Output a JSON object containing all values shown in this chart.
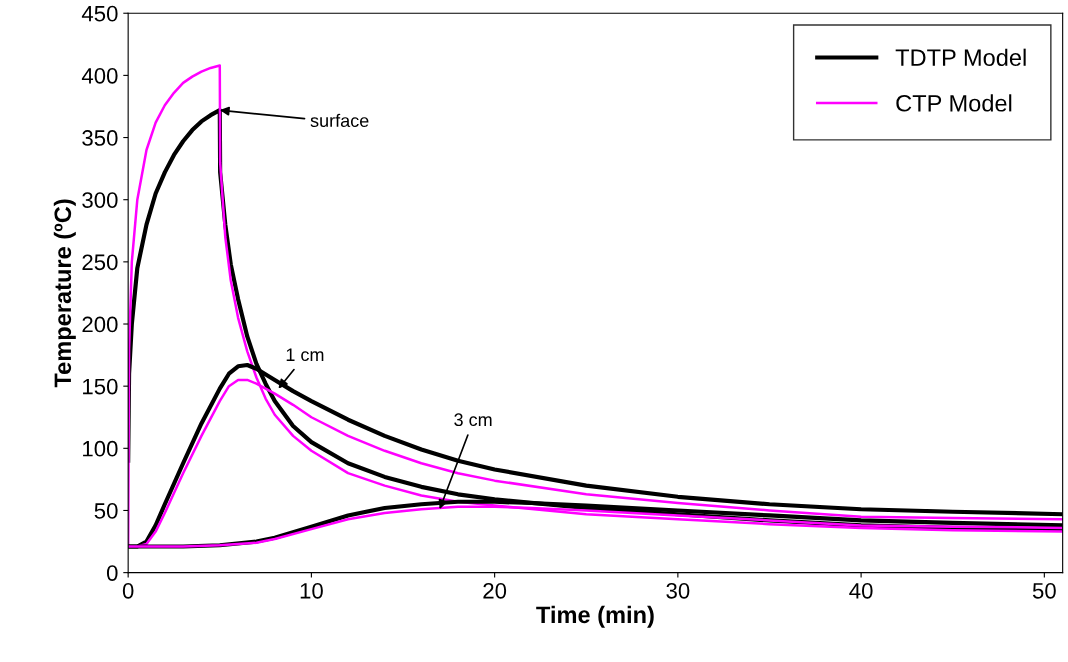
{
  "chart_data": {
    "type": "line",
    "xlabel": "Time (min)",
    "ylabel": "Temperature (ºC)",
    "xlim": [
      0,
      51
    ],
    "xticks": [
      0,
      10,
      20,
      30,
      40,
      50
    ],
    "ylim": [
      0,
      450
    ],
    "yticks": [
      0,
      50,
      100,
      150,
      200,
      250,
      300,
      350,
      400,
      450
    ],
    "grid": false,
    "legend": "top right",
    "marker": "none",
    "line_style": "solid",
    "series": [
      {
        "name": "TDTP Model",
        "color": "#000000",
        "x": [
          0,
          0.05,
          0.2,
          0.5,
          1,
          1.5,
          2,
          2.5,
          3,
          3.5,
          4,
          4.5,
          5,
          5.02,
          5.3,
          5.6,
          6,
          6.5,
          7,
          7.5,
          8,
          9,
          10,
          12,
          14,
          16,
          18,
          20,
          25,
          30,
          35,
          40,
          45,
          51
        ],
        "values": [
          90,
          160,
          200,
          245,
          280,
          305,
          322,
          336,
          347,
          356,
          363,
          368,
          372,
          322,
          280,
          248,
          220,
          190,
          168,
          152,
          138,
          118,
          105,
          88,
          77,
          69,
          63,
          59,
          52,
          47,
          42,
          38,
          36,
          35
        ]
      },
      {
        "name": "CTP Model",
        "color": "#ff00ff",
        "x": [
          0,
          0.05,
          0.2,
          0.5,
          1,
          1.5,
          2,
          2.5,
          3,
          3.5,
          4,
          4.5,
          5,
          5.02,
          5.3,
          5.6,
          6,
          6.5,
          7,
          7.5,
          8,
          9,
          10,
          12,
          14,
          16,
          18,
          20,
          25,
          30,
          35,
          40,
          45,
          51
        ],
        "values": [
          21,
          180,
          250,
          300,
          340,
          362,
          376,
          386,
          394,
          399,
          403,
          406,
          408,
          330,
          270,
          235,
          205,
          178,
          157,
          140,
          127,
          110,
          98,
          80,
          70,
          62,
          57,
          54,
          47,
          43,
          39,
          36,
          34,
          33
        ]
      },
      {
        "color": "#000000",
        "x": [
          0,
          0.5,
          1,
          1.5,
          2,
          3,
          4,
          5,
          5.5,
          6,
          6.5,
          7,
          8,
          9,
          10,
          12,
          14,
          16,
          18,
          20,
          25,
          30,
          35,
          40,
          45,
          51
        ],
        "values": [
          21,
          21,
          25,
          38,
          55,
          88,
          120,
          148,
          160,
          166,
          167,
          164,
          155,
          146,
          138,
          123,
          110,
          99,
          90,
          83,
          70,
          61,
          55,
          51,
          49,
          47
        ]
      },
      {
        "color": "#ff00ff",
        "x": [
          0,
          0.5,
          1,
          1.5,
          2,
          3,
          4,
          5,
          5.5,
          6,
          6.5,
          7,
          8,
          9,
          10,
          12,
          14,
          16,
          18,
          20,
          25,
          30,
          35,
          40,
          45,
          51
        ],
        "values": [
          21,
          21,
          23,
          33,
          48,
          80,
          110,
          138,
          150,
          155,
          155,
          152,
          144,
          135,
          125,
          110,
          98,
          88,
          80,
          74,
          63,
          56,
          50,
          45,
          44,
          43
        ]
      },
      {
        "color": "#000000",
        "x": [
          0,
          3,
          5,
          7,
          8,
          10,
          12,
          14,
          16,
          18,
          20,
          22,
          25,
          30,
          35,
          40,
          45,
          51
        ],
        "values": [
          21,
          21,
          22,
          25,
          28,
          37,
          46,
          52,
          55,
          57,
          57,
          56,
          54,
          50,
          46,
          42,
          40,
          38
        ]
      },
      {
        "color": "#ff00ff",
        "x": [
          0,
          3,
          5,
          7,
          8,
          10,
          12,
          14,
          16,
          18,
          20,
          22,
          25,
          30,
          35,
          40,
          45,
          51
        ],
        "values": [
          21,
          21,
          22,
          24,
          27,
          35,
          43,
          48,
          51,
          53,
          53,
          52,
          50,
          46,
          42,
          38,
          37,
          36
        ]
      }
    ],
    "annotations": [
      {
        "text": "surface",
        "x": 5,
        "y": 372
      },
      {
        "text": "1 cm",
        "x": 8.2,
        "y": 148
      },
      {
        "text": "3 cm",
        "x": 17,
        "y": 51
      }
    ]
  }
}
